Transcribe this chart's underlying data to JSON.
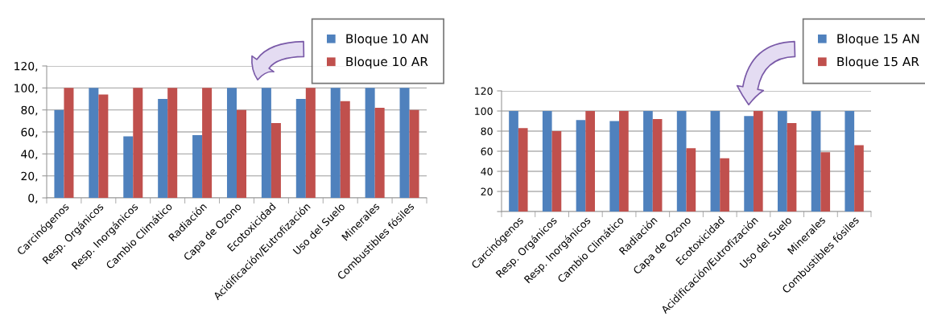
{
  "chart_data": [
    {
      "type": "bar",
      "categories": [
        "Carcinógenos",
        "Resp. Orgánicos",
        "Resp. Inorgánicos",
        "Cambio Climático",
        "Radiación",
        "Capa de Ozono",
        "Ecotoxicidad",
        "Acidificación/Eutrofización",
        "Uso del Suelo",
        "Minerales",
        "Combustibles fósiles"
      ],
      "series": [
        {
          "name": "Bloque 10 AN",
          "color": "#4f81bd",
          "values": [
            80,
            100,
            56,
            90,
            57,
            100,
            100,
            90,
            100,
            100,
            100
          ]
        },
        {
          "name": "Bloque 10 AR",
          "color": "#c0504d",
          "values": [
            100,
            94,
            100,
            100,
            100,
            80,
            68,
            100,
            88,
            82,
            80
          ]
        }
      ],
      "ylim": [
        0,
        120
      ],
      "yticks": [
        {
          "value": 0,
          "label": "0,"
        },
        {
          "value": 20,
          "label": "20,"
        },
        {
          "value": 40,
          "label": "40,"
        },
        {
          "value": 60,
          "label": "60,"
        },
        {
          "value": 80,
          "label": "80,"
        },
        {
          "value": 100,
          "label": "100,"
        },
        {
          "value": 120,
          "label": "120,"
        }
      ],
      "grid": "y",
      "legend": "top right"
    },
    {
      "type": "bar",
      "categories": [
        "Carcinógenos",
        "Resp. Orgánicos",
        "Resp. Inorgánicos",
        "Cambio Climático",
        "Radiación",
        "Capa de Ozono",
        "Ecotoxicidad",
        "Acidificación/Eutrofización",
        "Uso del Suelo",
        "Minerales",
        "Combustibles fósiles"
      ],
      "series": [
        {
          "name": "Bloque 15 AN",
          "color": "#4f81bd",
          "values": [
            100,
            100,
            91,
            90,
            100,
            100,
            100,
            95,
            100,
            100,
            100
          ]
        },
        {
          "name": "Bloque 15 AR",
          "color": "#c0504d",
          "values": [
            83,
            80,
            100,
            100,
            92,
            63,
            53,
            100,
            88,
            59,
            66
          ]
        }
      ],
      "ylim": [
        0,
        120
      ],
      "yticks": [
        {
          "value": 0,
          "label": null
        },
        20,
        40,
        60,
        80,
        100,
        120
      ],
      "grid": "y",
      "legend": "top right"
    }
  ]
}
